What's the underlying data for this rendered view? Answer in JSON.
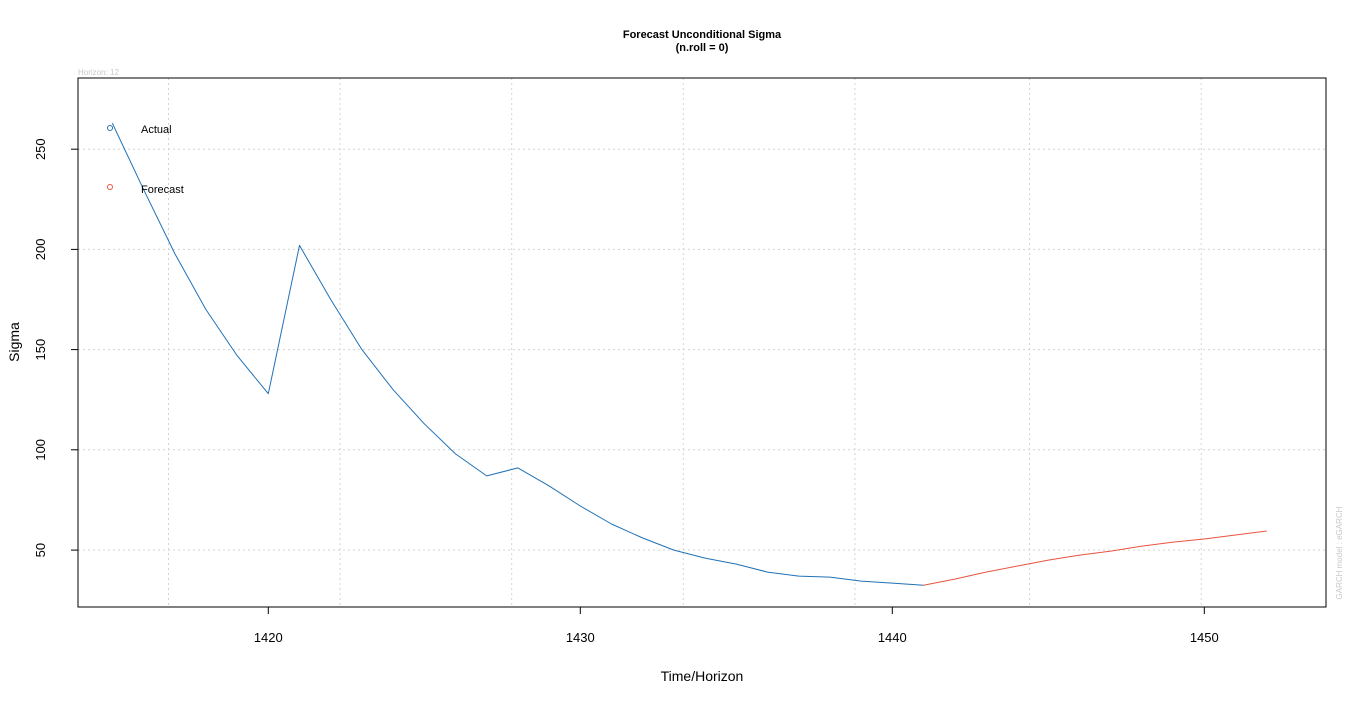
{
  "chart_data": {
    "type": "line",
    "title": "Forecast Unconditional Sigma",
    "subtitle": "(n.roll = 0)",
    "xlabel": "Time/Horizon",
    "ylabel": "Sigma",
    "horizon_note": "Horizon: 12",
    "side_note": "GARCH model : eGARCH",
    "xlim": [
      1413.9,
      1453.9
    ],
    "ylim": [
      21.6,
      285.5
    ],
    "x_ticks": [
      1420,
      1430,
      1440,
      1450
    ],
    "y_ticks": [
      50,
      100,
      150,
      200,
      250
    ],
    "x_grid": [
      1416.8,
      1422.3,
      1427.8,
      1433.3,
      1438.8,
      1444.4,
      1449.9
    ],
    "y_grid": [
      50,
      100,
      150,
      200,
      250
    ],
    "grid": true,
    "legend_position": "top-left",
    "series": [
      {
        "name": "Actual",
        "color": "#2171B5",
        "x": [
          1415,
          1416,
          1417,
          1418,
          1419,
          1420,
          1421,
          1422,
          1423,
          1424,
          1425,
          1426,
          1427,
          1428,
          1429,
          1430,
          1431,
          1432,
          1433,
          1434,
          1435,
          1436,
          1437,
          1438,
          1439,
          1440,
          1441
        ],
        "y": [
          263,
          230,
          198,
          170,
          147,
          128,
          202,
          175,
          150,
          130,
          113,
          98,
          87,
          91,
          82,
          72,
          63,
          56,
          50,
          46,
          43,
          39,
          37,
          36.5,
          34.5,
          33.5,
          32.5
        ]
      },
      {
        "name": "Forecast",
        "color": "#E8543F",
        "x": [
          1441,
          1442,
          1443,
          1444,
          1445,
          1446,
          1447,
          1448,
          1449,
          1450,
          1451,
          1452
        ],
        "y": [
          32.5,
          35.5,
          39,
          42,
          45,
          47.5,
          49.5,
          52,
          54,
          55.5,
          57.5,
          59.5
        ]
      }
    ]
  }
}
